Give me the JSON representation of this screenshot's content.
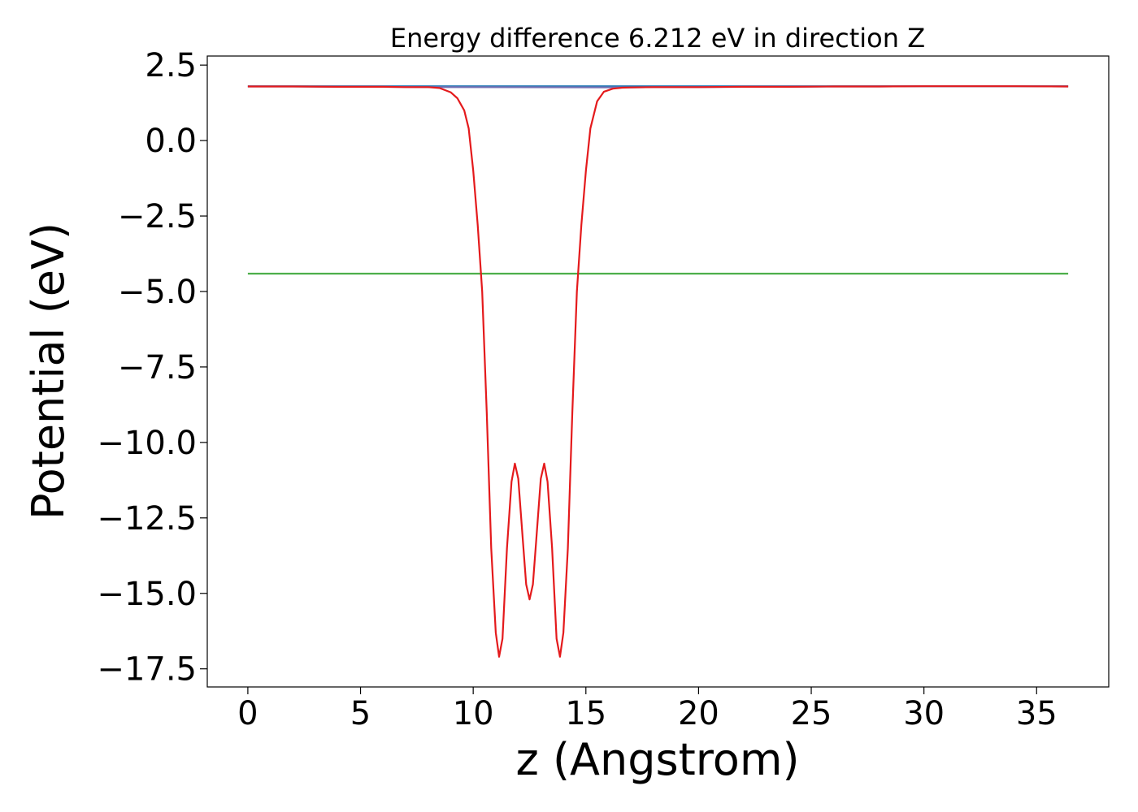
{
  "chart_data": {
    "type": "line",
    "title": "Energy difference 6.212 eV in direction Z",
    "xlabel": "z (Angstrom)",
    "ylabel": "Potential (eV)",
    "xlim": [
      -1.8,
      38.2
    ],
    "ylim": [
      -18.1,
      2.8
    ],
    "xticks": [
      0,
      5,
      10,
      15,
      20,
      25,
      30,
      35
    ],
    "xtick_labels": [
      "0",
      "5",
      "10",
      "15",
      "20",
      "25",
      "30",
      "35"
    ],
    "yticks": [
      2.5,
      0.0,
      -2.5,
      -5.0,
      -7.5,
      -10.0,
      -12.5,
      -15.0,
      -17.5
    ],
    "ytick_labels": [
      "2.5",
      "0.0",
      "−2.5",
      "−5.0",
      "−7.5",
      "−10.0",
      "−12.5",
      "−15.0",
      "−17.5"
    ],
    "grid": false,
    "legend": "none",
    "series": [
      {
        "color": "#1f77b4",
        "x": [
          0,
          36.4
        ],
        "y": [
          1.8,
          1.8
        ]
      },
      {
        "color": "#4daf4a",
        "x": [
          0,
          36.4
        ],
        "y": [
          -4.41,
          -4.41
        ]
      },
      {
        "color": "#7570b3",
        "x": [
          0,
          2,
          4,
          6,
          8,
          8.5,
          17,
          18,
          20,
          22,
          24,
          26,
          28,
          30,
          32,
          34,
          36.4
        ],
        "y": [
          1.79,
          1.79,
          1.78,
          1.78,
          1.77,
          1.77,
          1.76,
          1.77,
          1.77,
          1.78,
          1.78,
          1.79,
          1.79,
          1.8,
          1.8,
          1.8,
          1.79
        ]
      },
      {
        "color": "#e41a1c",
        "x": [
          0,
          2,
          4,
          6,
          7,
          8,
          8.5,
          9,
          9.3,
          9.6,
          9.8,
          10.0,
          10.2,
          10.4,
          10.6,
          10.8,
          11.0,
          11.15,
          11.3,
          11.5,
          11.7,
          11.85,
          12.0,
          12.2,
          12.35,
          12.5,
          12.65,
          12.8,
          13.0,
          13.15,
          13.3,
          13.5,
          13.7,
          13.85,
          14.0,
          14.2,
          14.4,
          14.6,
          14.8,
          15.0,
          15.2,
          15.5,
          15.8,
          16.2,
          16.6,
          17,
          18,
          20,
          22,
          24,
          26,
          28,
          30,
          32,
          34,
          36.4
        ],
        "y": [
          1.79,
          1.79,
          1.78,
          1.78,
          1.77,
          1.77,
          1.74,
          1.6,
          1.4,
          1.0,
          0.4,
          -1.0,
          -2.8,
          -5.0,
          -9.0,
          -13.5,
          -16.3,
          -17.1,
          -16.5,
          -13.5,
          -11.3,
          -10.7,
          -11.2,
          -13.2,
          -14.7,
          -15.2,
          -14.7,
          -13.2,
          -11.2,
          -10.7,
          -11.3,
          -13.5,
          -16.5,
          -17.1,
          -16.3,
          -13.5,
          -9.0,
          -5.0,
          -2.8,
          -1.0,
          0.4,
          1.3,
          1.62,
          1.72,
          1.75,
          1.76,
          1.77,
          1.77,
          1.78,
          1.78,
          1.79,
          1.79,
          1.8,
          1.8,
          1.8,
          1.79
        ]
      }
    ]
  }
}
